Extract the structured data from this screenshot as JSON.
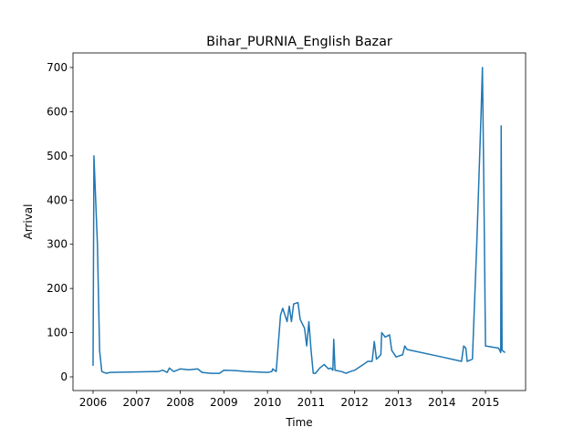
{
  "chart_data": {
    "type": "line",
    "title": "Bihar_PURNIA_English Bazar",
    "x_label": "Time",
    "y_label": "Arrival",
    "color": "#1f77b4",
    "x": [
      2006.0,
      2006.02,
      2006.1,
      2006.15,
      2006.2,
      2006.3,
      2006.4,
      2007.5,
      2007.6,
      2007.7,
      2007.75,
      2007.85,
      2008.0,
      2008.2,
      2008.4,
      2008.5,
      2008.7,
      2008.9,
      2009.0,
      2009.3,
      2009.5,
      2010.0,
      2010.1,
      2010.12,
      2010.2,
      2010.3,
      2010.35,
      2010.45,
      2010.5,
      2010.55,
      2010.6,
      2010.7,
      2010.75,
      2010.85,
      2010.9,
      2010.95,
      2011.0,
      2011.05,
      2011.1,
      2011.2,
      2011.3,
      2011.4,
      2011.45,
      2011.5,
      2011.52,
      2011.55,
      2011.7,
      2011.8,
      2011.9,
      2012.0,
      2012.2,
      2012.3,
      2012.4,
      2012.45,
      2012.5,
      2012.6,
      2012.62,
      2012.7,
      2012.8,
      2012.85,
      2012.95,
      2013.1,
      2013.15,
      2013.2,
      2014.0,
      2014.45,
      2014.5,
      2014.55,
      2014.58,
      2014.7,
      2014.8,
      2014.9,
      2014.93,
      2014.96,
      2015.0,
      2015.3,
      2015.35,
      2015.36,
      2015.38,
      2015.45
    ],
    "values": [
      25,
      500,
      300,
      60,
      12,
      8,
      10,
      12,
      15,
      10,
      20,
      12,
      18,
      16,
      18,
      10,
      8,
      8,
      15,
      14,
      12,
      10,
      12,
      18,
      12,
      140,
      155,
      125,
      160,
      125,
      165,
      168,
      130,
      110,
      70,
      125,
      60,
      8,
      8,
      20,
      28,
      18,
      20,
      15,
      85,
      15,
      12,
      8,
      12,
      15,
      28,
      35,
      35,
      80,
      40,
      50,
      100,
      90,
      95,
      60,
      45,
      50,
      70,
      62,
      45,
      35,
      70,
      65,
      35,
      40,
      300,
      600,
      700,
      450,
      70,
      65,
      55,
      568,
      60,
      55
    ],
    "xlim": [
      2005.54,
      2015.92
    ],
    "ylim": [
      -31,
      733
    ],
    "xticks": [
      2006,
      2007,
      2008,
      2009,
      2010,
      2011,
      2012,
      2013,
      2014,
      2015
    ],
    "yticks": [
      0,
      100,
      200,
      300,
      400,
      500,
      600,
      700
    ]
  }
}
